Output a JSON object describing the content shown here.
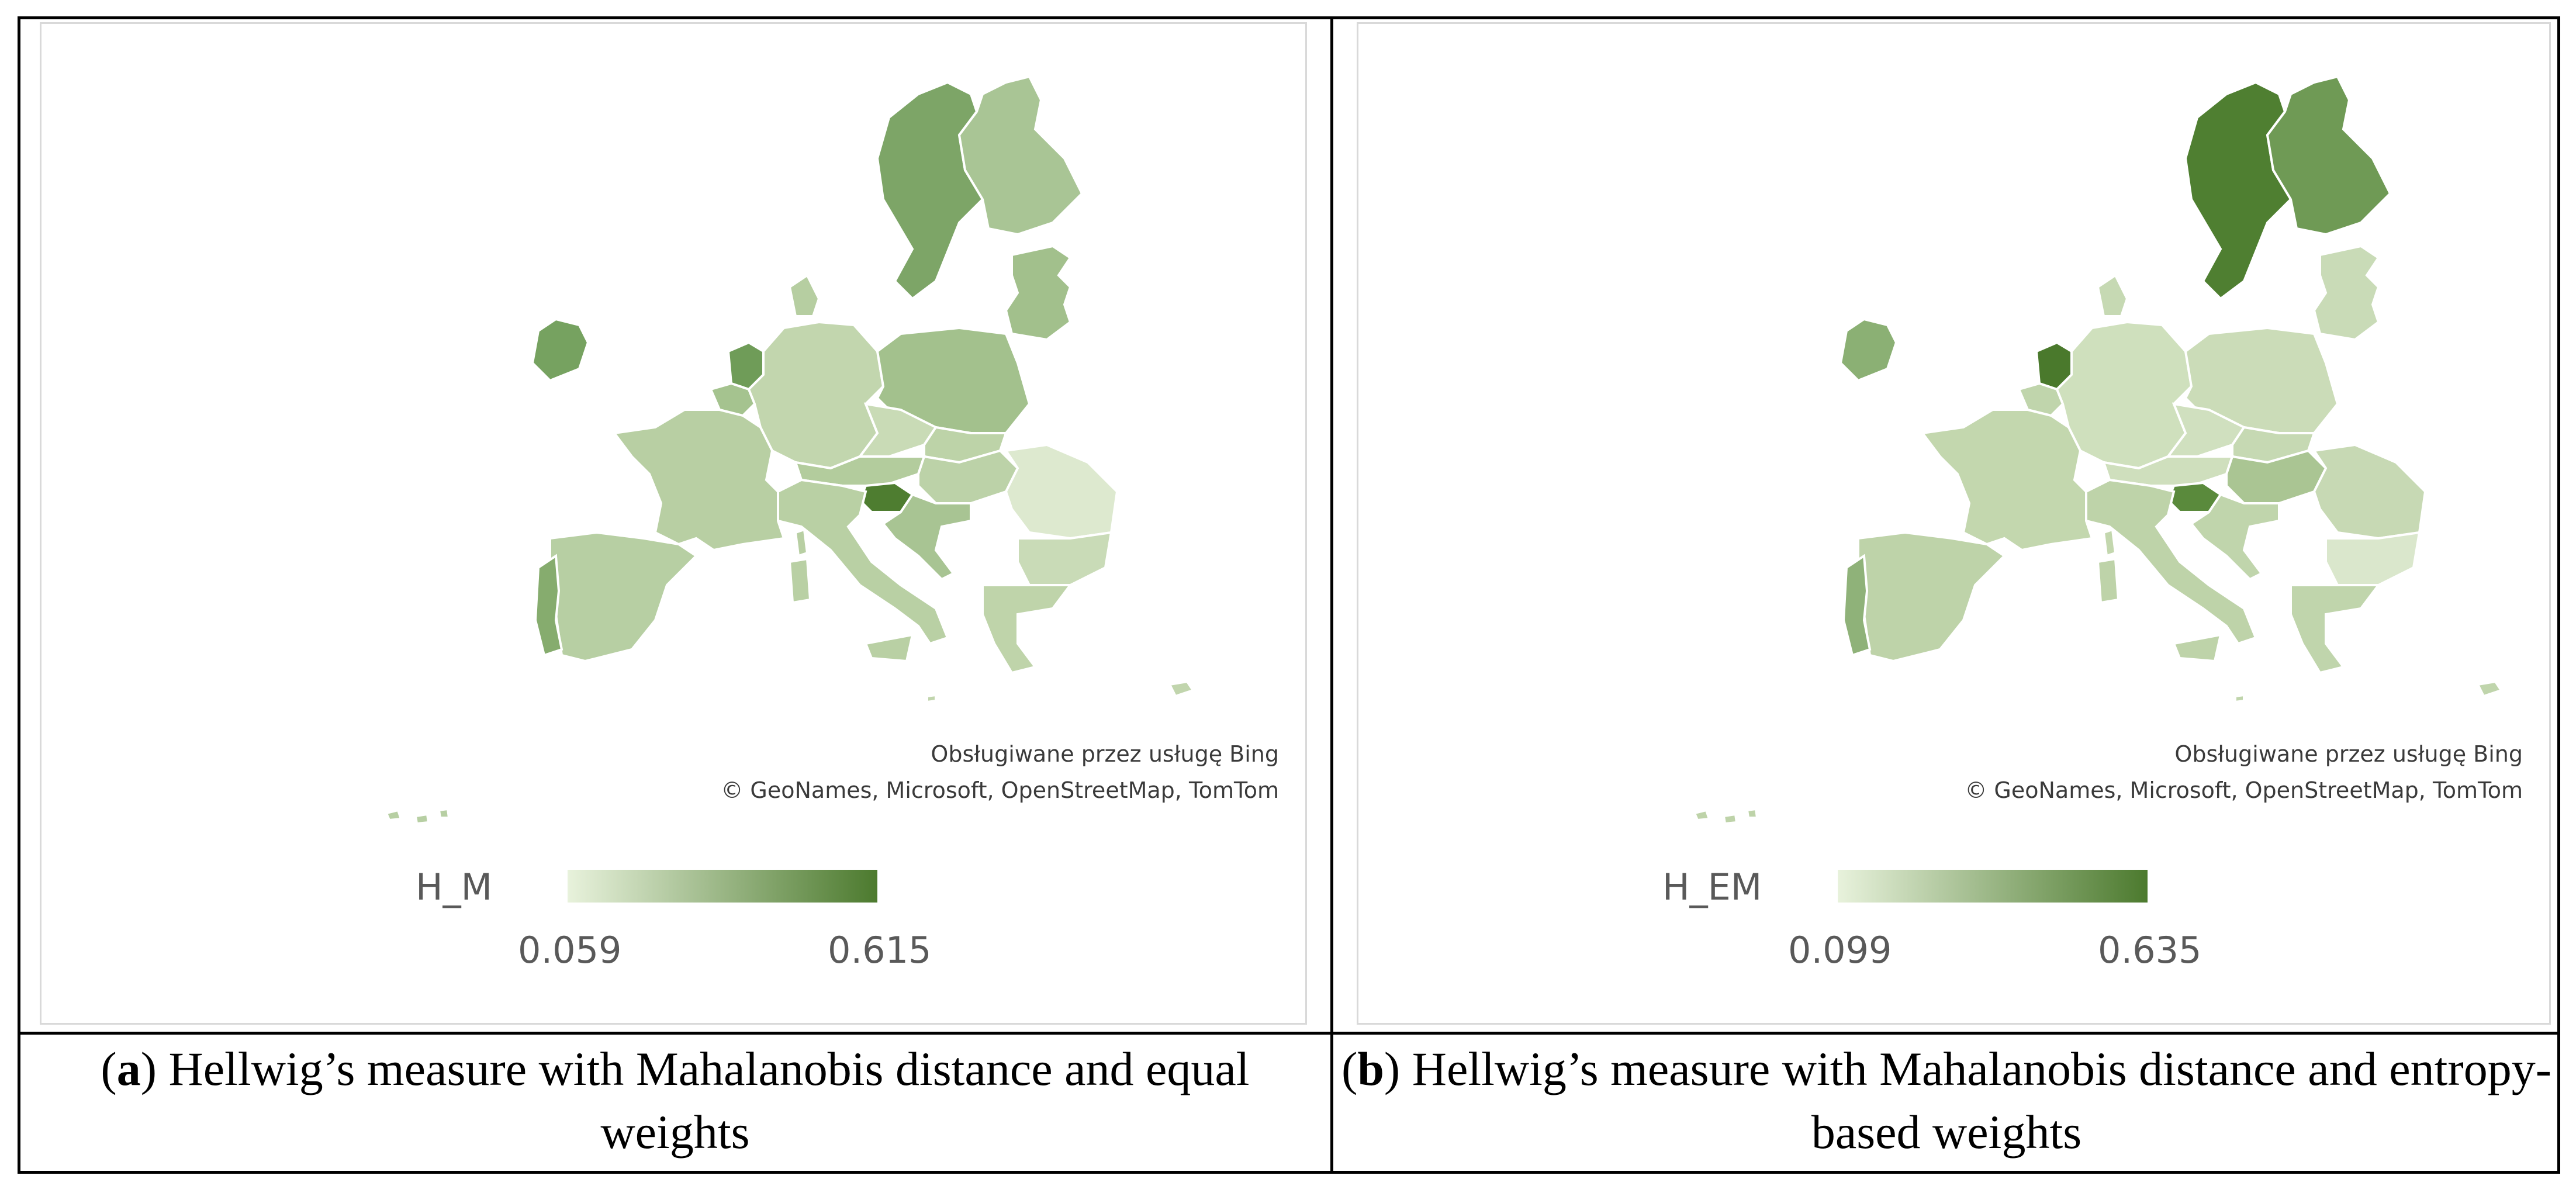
{
  "panels": [
    {
      "id": "a",
      "attribution_line1": "Obsługiwane przez usługę Bing",
      "attribution_line2": "© GeoNames, Microsoft, OpenStreetMap, TomTom",
      "legend": {
        "title": "H_M",
        "min": "0.059",
        "max": "0.615",
        "color_low": "#e8f2dc",
        "color_high": "#4c7a2e"
      },
      "caption": {
        "letter": "a",
        "text": " Hellwig’s measure with Mahalanobis distance and equal weights"
      },
      "regions": {
        "sweden": "#7da567",
        "finland": "#a9c595",
        "baltics": "#a2c08c",
        "ireland": "#76a260",
        "uk": "#ffffff",
        "netherlands": "#6f9c58",
        "belgium": "#a5c38f",
        "germany": "#c2d6ae",
        "poland": "#a3c18d",
        "czechia": "#c9dbb6",
        "slovakia": "#bdd3a8",
        "austria": "#b3cc9d",
        "hungary": "#bcd2a8",
        "slovenia": "#4e7d30",
        "croatia": "#a8c493",
        "romania": "#dde9cf",
        "bulgaria": "#c9dbb7",
        "greece": "#bfd4aa",
        "italy": "#b9d0a4",
        "france": "#b8cfa3",
        "spain": "#b7cfa3",
        "portugal": "#86ac6e",
        "switzerland": "#ffffff",
        "denmark": "#b6cea1",
        "cyprus": "#c1d5ad",
        "malta": "#c1d5ad"
      }
    },
    {
      "id": "b",
      "attribution_line1": "Obsługiwane przez usługę Bing",
      "attribution_line2": "© GeoNames, Microsoft, OpenStreetMap, TomTom",
      "legend": {
        "title": "H_EM",
        "min": "0.099",
        "max": "0.635",
        "color_low": "#e8f2dc",
        "color_high": "#4c7a2e"
      },
      "caption": {
        "letter": "b",
        "text": " Hellwig’s measure with Mahalanobis distance and entropy-based weights"
      },
      "regions": {
        "sweden": "#4f7f31",
        "finland": "#6f9a55",
        "baltics": "#c9dbb7",
        "ireland": "#8bb074",
        "uk": "#ffffff",
        "netherlands": "#4a792c",
        "belgium": "#c0d5ac",
        "germany": "#cfe0bd",
        "poland": "#cbdcb8",
        "czechia": "#d0e0bf",
        "slovakia": "#c6d9b3",
        "austria": "#cfdfbd",
        "hungary": "#aac593",
        "slovenia": "#5a8a3c",
        "croatia": "#c0d5ac",
        "romania": "#c7d9b4",
        "bulgaria": "#dae7cc",
        "greece": "#c0d5ac",
        "italy": "#bed3a9",
        "france": "#c3d7ae",
        "spain": "#bed3a9",
        "portugal": "#8fb279",
        "switzerland": "#ffffff",
        "denmark": "#c6d9b3",
        "cyprus": "#c0d5ac",
        "malta": "#c0d5ac"
      }
    }
  ]
}
